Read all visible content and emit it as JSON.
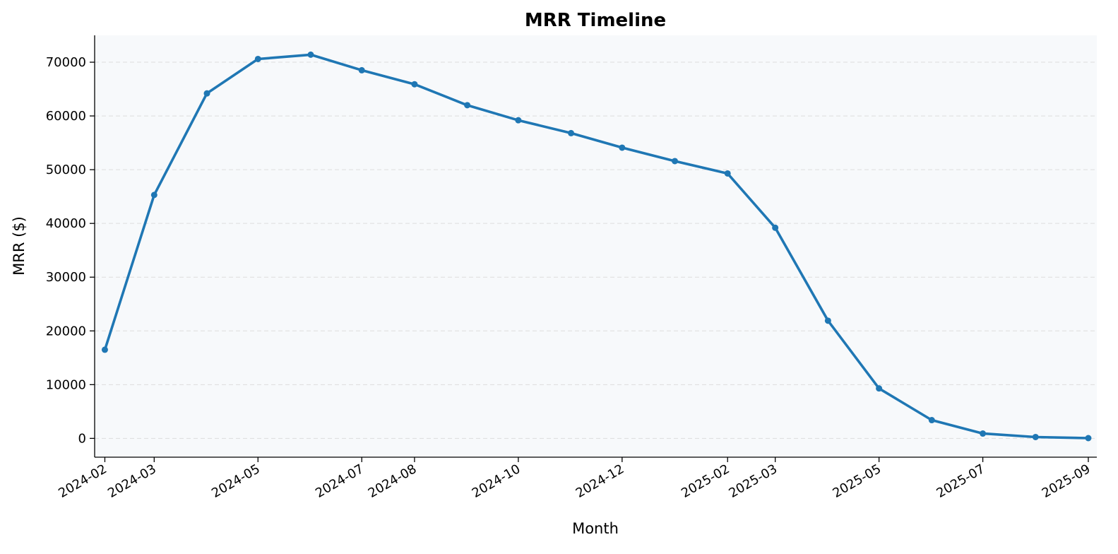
{
  "chart_data": {
    "type": "line",
    "title": "MRR Timeline",
    "xlabel": "Month",
    "ylabel": "MRR ($)",
    "ylim": [
      -3500,
      75000
    ],
    "xlim": [
      "2024-01-26",
      "2025-09-06"
    ],
    "grid": "y-dashed",
    "legend": "none",
    "x_ticks": [
      "2024-02",
      "2024-03",
      "2024-05",
      "2024-07",
      "2024-08",
      "2024-10",
      "2024-12",
      "2025-02",
      "2025-03",
      "2025-05",
      "2025-07",
      "2025-09"
    ],
    "y_ticks": [
      0,
      10000,
      20000,
      30000,
      40000,
      50000,
      60000,
      70000
    ],
    "colors": {
      "line": "#1f77b4",
      "plot_bg": "#f7f9fb",
      "grid": "#dddddd"
    },
    "series": [
      {
        "x": [
          "2024-02-01",
          "2024-03-01",
          "2024-04-01",
          "2024-05-01",
          "2024-06-01",
          "2024-07-01",
          "2024-08-01",
          "2024-09-01",
          "2024-10-01",
          "2024-11-01",
          "2024-12-01",
          "2025-01-01",
          "2025-02-01",
          "2025-03-01",
          "2025-04-01",
          "2025-05-01",
          "2025-06-01",
          "2025-07-01",
          "2025-08-01",
          "2025-09-01"
        ],
        "values": [
          16500,
          45300,
          64200,
          70600,
          71400,
          68500,
          65900,
          62000,
          59200,
          56800,
          54100,
          51600,
          49300,
          39200,
          21900,
          9300,
          3400,
          900,
          250,
          50
        ]
      }
    ]
  }
}
